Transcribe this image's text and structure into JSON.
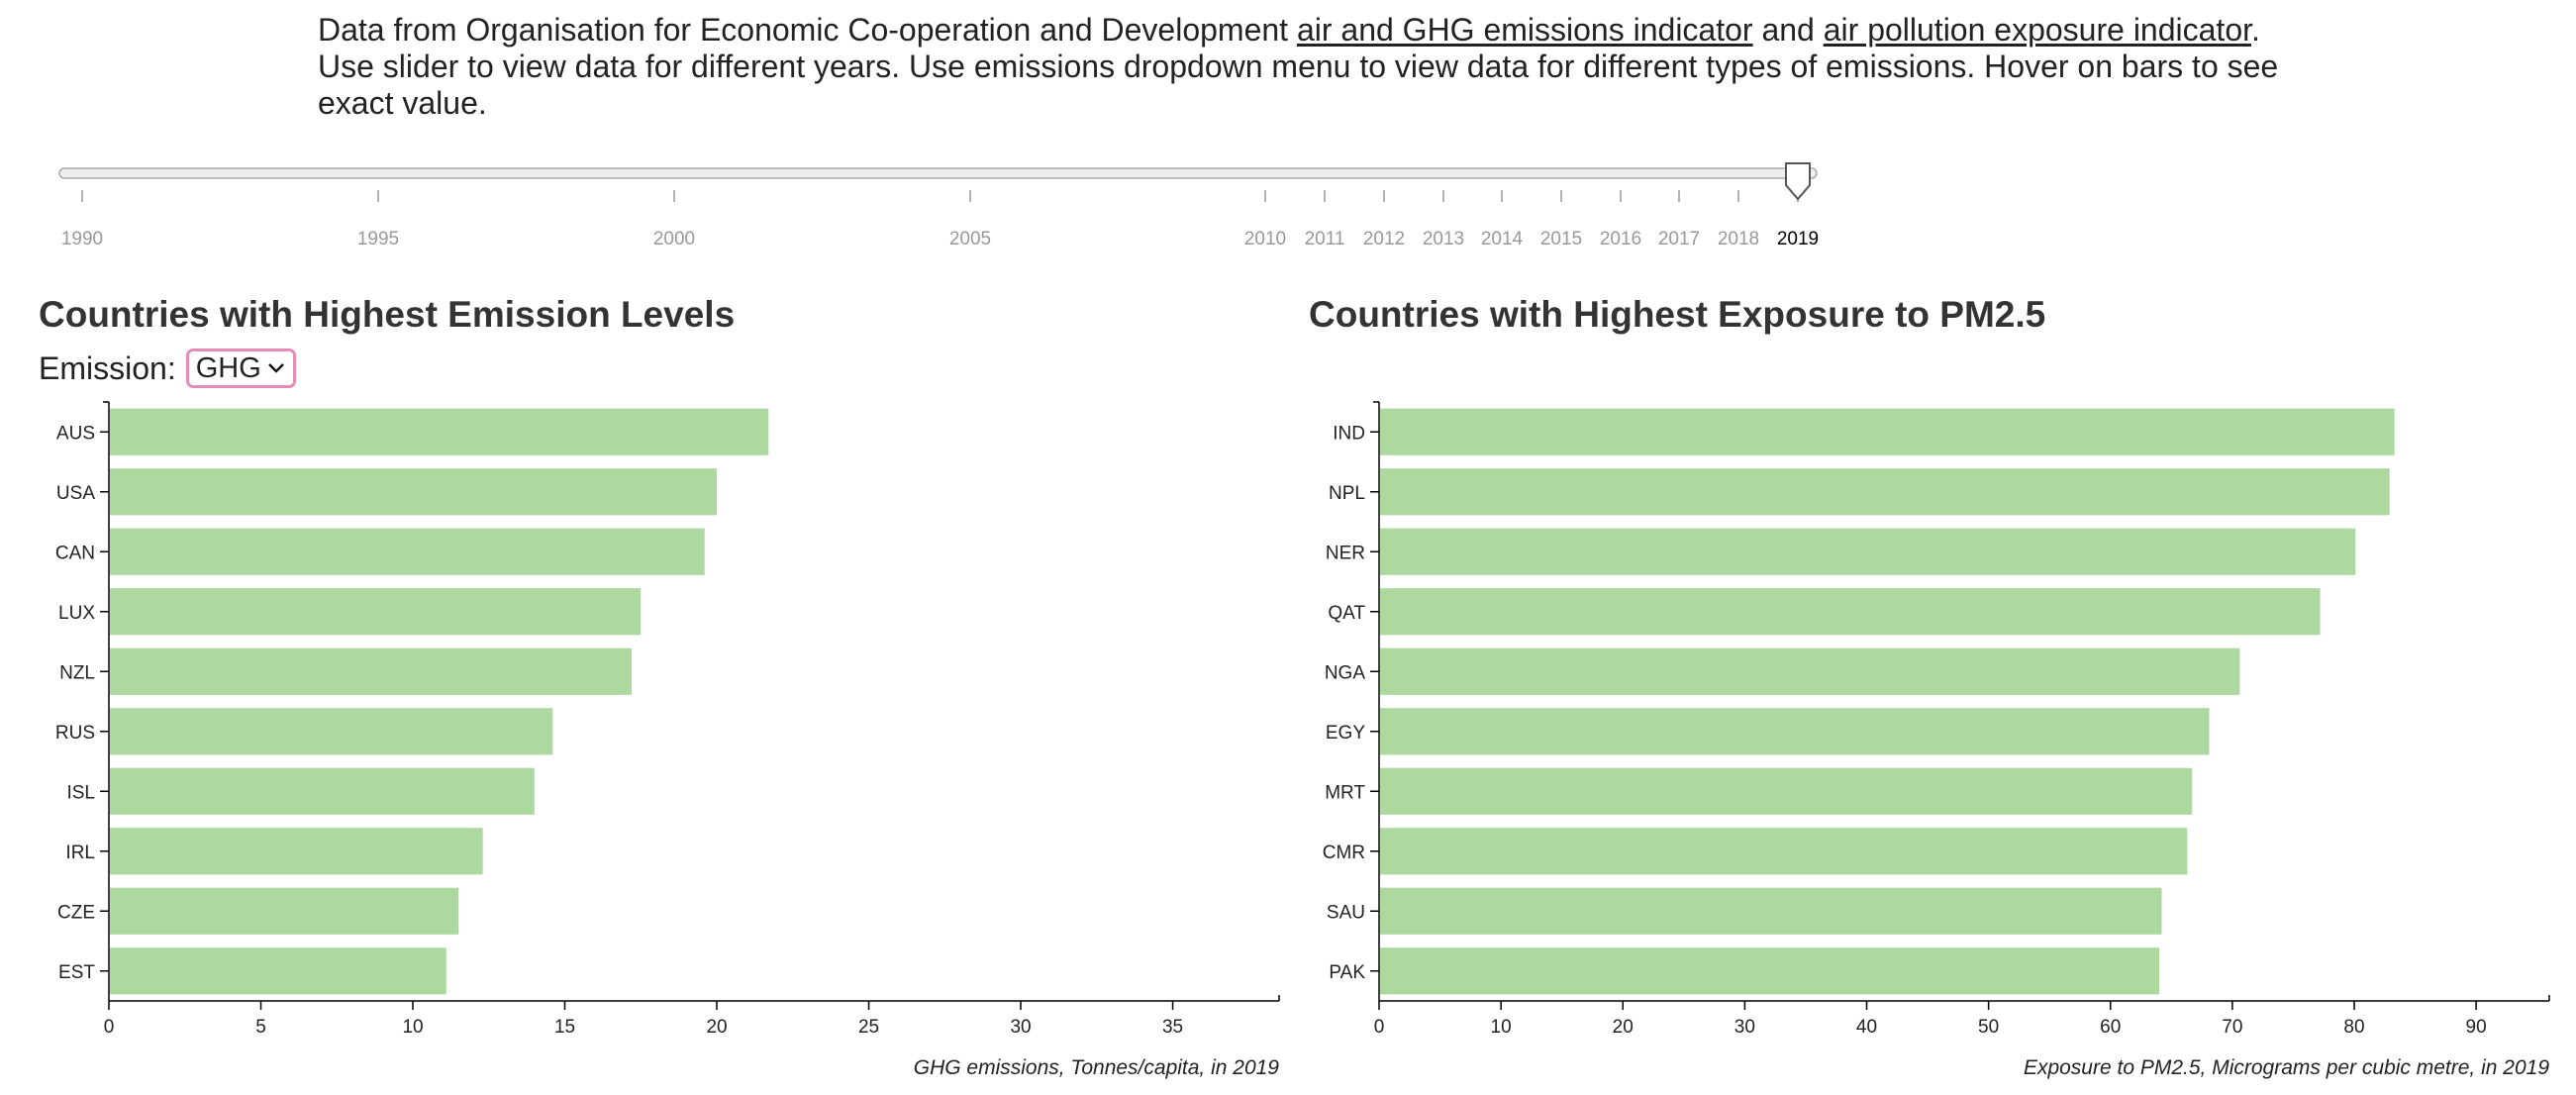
{
  "intro": {
    "text_before": "Data from Organisation for Economic Co-operation and Development ",
    "link1": "air and GHG emissions indicator",
    "text_mid": " and ",
    "link2": "air pollution exposure indicator",
    "text_after": ". Use slider to view data for different years. Use emissions dropdown menu to view data for different types of emissions. Hover on bars to see exact value."
  },
  "slider": {
    "ticks": [
      "1990",
      "1995",
      "2000",
      "2005",
      "2010",
      "2011",
      "2012",
      "2013",
      "2014",
      "2015",
      "2016",
      "2017",
      "2018",
      "2019"
    ],
    "selected": "2019"
  },
  "emission_control": {
    "label": "Emission:",
    "selected": "GHG"
  },
  "colors": {
    "bar": "#add8a0",
    "axis": "#000000",
    "tick_text": "#222222",
    "slider_tick_text": "#999999",
    "select_border": "#e58cb4"
  },
  "chart_data": [
    {
      "type": "bar",
      "orientation": "horizontal",
      "title": "Countries with Highest Emission Levels",
      "categories": [
        "AUS",
        "USA",
        "CAN",
        "LUX",
        "NZL",
        "RUS",
        "ISL",
        "IRL",
        "CZE",
        "EST"
      ],
      "values": [
        21.7,
        20.0,
        19.6,
        17.5,
        17.2,
        14.6,
        14.0,
        12.3,
        11.5,
        11.1
      ],
      "xlabel": "GHG emissions, Tonnes/capita, in 2019",
      "xlim": [
        0,
        38.5
      ],
      "xticks": [
        0,
        5,
        10,
        15,
        20,
        25,
        30,
        35
      ],
      "grid": false
    },
    {
      "type": "bar",
      "orientation": "horizontal",
      "title": "Countries with Highest Exposure to PM2.5",
      "categories": [
        "IND",
        "NPL",
        "NER",
        "QAT",
        "NGA",
        "EGY",
        "MRT",
        "CMR",
        "SAU",
        "PAK"
      ],
      "values": [
        83.3,
        82.9,
        80.1,
        77.2,
        70.6,
        68.1,
        66.7,
        66.3,
        64.2,
        64.0
      ],
      "xlabel": "Exposure to PM2.5, Micrograms per cubic metre, in 2019",
      "xlim": [
        0,
        96
      ],
      "xticks": [
        0,
        10,
        20,
        30,
        40,
        50,
        60,
        70,
        80,
        90
      ],
      "grid": false
    }
  ]
}
